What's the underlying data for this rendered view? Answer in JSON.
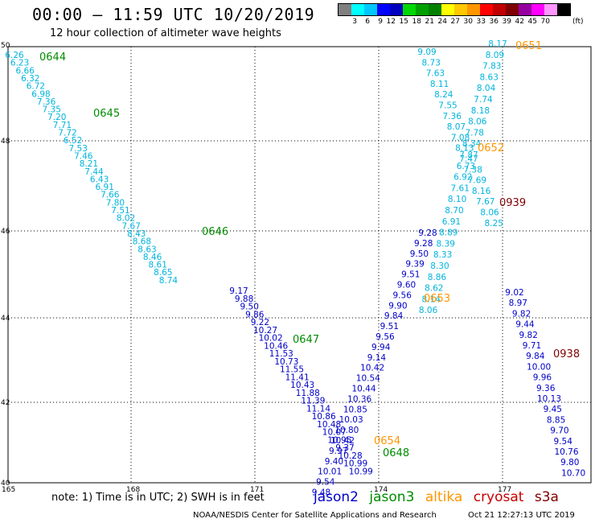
{
  "header": {
    "title": "00:00 – 11:59 UTC 10/20/2019",
    "subtitle": "12 hour collection of altimeter wave heights"
  },
  "legend": {
    "colors": [
      "#808080",
      "#00ffff",
      "#00c8ff",
      "#0000ff",
      "#0000c0",
      "#00d800",
      "#00a000",
      "#008000",
      "#ffff00",
      "#ffc800",
      "#ff9600",
      "#ff0000",
      "#c00000",
      "#800000",
      "#9600a0",
      "#ff00ff",
      "#ff96ff",
      "#000000"
    ],
    "labels": [
      "3",
      "6",
      "9",
      "12",
      "15",
      "18",
      "21",
      "24",
      "27",
      "30",
      "33",
      "36",
      "39",
      "42",
      "45",
      "70"
    ],
    "unit": "(ft)"
  },
  "map": {
    "x_ticks": [
      "165",
      "168",
      "171",
      "174",
      "177"
    ],
    "y_ticks": [
      "50",
      "48",
      "46",
      "44",
      "42",
      "40"
    ],
    "colors": {
      "jason2": "#0000c8",
      "jason3": "#008c00",
      "altika": "#ff9600",
      "cryosat": "#c80000",
      "s3a": "#800000",
      "light": "#00b4dc"
    }
  },
  "tracks": [
    {
      "color": "light",
      "start": [
        18,
        72
      ],
      "dx": 6.6,
      "dy": 9.65,
      "values": [
        "6.26",
        "6.23",
        "6.66",
        "6.32",
        "6.72",
        "6.98",
        "7.36",
        "7.35",
        "7.20",
        "7.71",
        "7.72",
        "6.52",
        "7.53",
        "7.46",
        "8.21",
        "7.44",
        "6.43",
        "6.91",
        "7.66",
        "7.80",
        "7.51",
        "8.02",
        "7.67",
        "8.43",
        "8.68",
        "8.63",
        "8.46",
        "8.61",
        "8.65",
        "8.74"
      ]
    },
    {
      "color": "jason2",
      "start": [
        297,
        365
      ],
      "dx": 6.6,
      "dy": 9.75,
      "values": [
        "9.17",
        "9.88",
        "9.50",
        "9.86",
        "9.22",
        "10.27",
        "10.02",
        "10.46",
        "11.53",
        "10.73",
        "11.55",
        "11.41",
        "10.43",
        "11.88",
        "11.39",
        "11.14",
        "10.86",
        "10.48",
        "10.07",
        "10.95",
        "9.37",
        "10.28",
        "10.99",
        "10.99"
      ]
    },
    {
      "color": "light",
      "start": [
        531,
        68
      ],
      "dx": 5.2,
      "dy": 13.3,
      "values": [
        "9.09",
        "8.73",
        "7.63",
        "8.11",
        "8.24",
        "7.55",
        "7.36",
        "8.07",
        "7.08",
        "8.13",
        "7.47",
        "7.38",
        "7.69",
        "8.16",
        "7.67",
        "8.06",
        "8.25"
      ]
    },
    {
      "color": "jason2",
      "start": [
        532,
        293
      ],
      "dx": -5.3,
      "dy": 12.9,
      "values": [
        "9.28",
        "9.28",
        "9.50",
        "9.39",
        "9.51",
        "9.60",
        "9.56",
        "9.90",
        "9.84",
        "9.51",
        "9.56",
        "9.94",
        "9.14",
        "10.42",
        "10.54",
        "10.44",
        "10.36",
        "10.85",
        "10.03",
        "10.80",
        "10.42",
        "9.97",
        "9.40",
        "10.01",
        "9.54",
        "9.48"
      ]
    },
    {
      "color": "light",
      "start": [
        619,
        58
      ],
      "dx": -3.6,
      "dy": 13.8,
      "values": [
        "8.17",
        "8.09",
        "7.83",
        "8.63",
        "8.04",
        "7.74",
        "8.18",
        "8.06",
        "7.78",
        "8.34",
        "7.87",
        "6.73",
        "6.92",
        "7.61",
        "8.10",
        "8.70",
        "6.91",
        "8.89",
        "8.39",
        "8.33",
        "8.30",
        "8.86",
        "8.62",
        "8.14",
        "8.06"
      ]
    },
    {
      "color": "jason2",
      "start": [
        640,
        367
      ],
      "dx": 4.3,
      "dy": 13.2,
      "values": [
        "9.02",
        "8.97",
        "9.82",
        "9.44",
        "9.82",
        "9.71",
        "9.84",
        "10.00",
        "9.96",
        "9.36",
        "10.13",
        "9.45",
        "8.85",
        "9.70",
        "9.54",
        "10.76",
        "9.80",
        "10.70"
      ]
    }
  ],
  "time_labels": [
    {
      "text": "0644",
      "sat": "jason3"
    },
    {
      "text": "0645",
      "sat": "jason3"
    },
    {
      "text": "0646",
      "sat": "jason3"
    },
    {
      "text": "0647",
      "sat": "jason3"
    },
    {
      "text": "0648",
      "sat": "jason3"
    },
    {
      "text": "0651",
      "sat": "altika"
    },
    {
      "text": "0652",
      "sat": "altika"
    },
    {
      "text": "0653",
      "sat": "altika"
    },
    {
      "text": "0654",
      "sat": "altika"
    },
    {
      "text": "0939",
      "sat": "s3a"
    },
    {
      "text": "0938",
      "sat": "s3a"
    }
  ],
  "footer": {
    "note": "note: 1) Time is in UTC; 2) SWH is in feet",
    "sats": {
      "jason2": "jason2",
      "jason3": "jason3",
      "altika": "altika",
      "cryosat": "cryosat",
      "s3a": "s3a"
    },
    "credit": "NOAA/NESDIS Center for Satellite Applications and Research",
    "timestamp": "Oct 21 12:27:13 UTC 2019"
  }
}
